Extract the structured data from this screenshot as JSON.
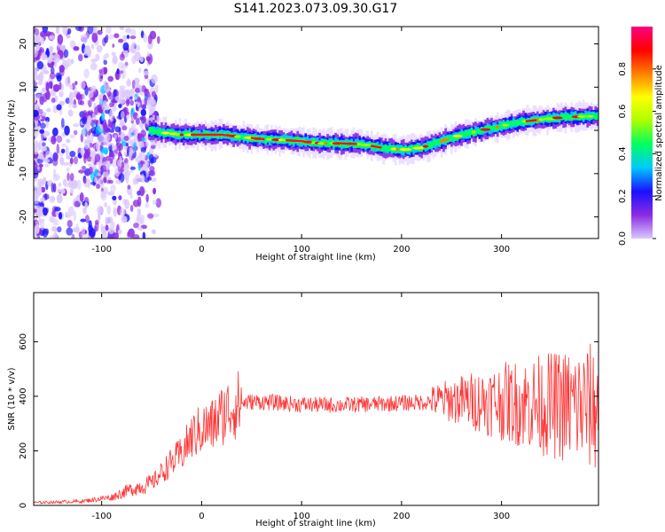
{
  "title": "S141.2023.073.09.30.G17",
  "chart_data": [
    {
      "type": "heatmap",
      "xlabel": "Height of straight line (km)",
      "ylabel": "Frequency (Hz)",
      "xlim": [
        -168,
        397
      ],
      "ylim": [
        -25,
        24
      ],
      "xticks": [
        -100,
        0,
        100,
        200,
        300
      ],
      "yticks": [
        -20,
        -10,
        0,
        10,
        20
      ],
      "colorbar": {
        "label": "Normalized spectral amplitude",
        "range": [
          0,
          1
        ],
        "ticks": [
          "0.0",
          "0.2",
          "0.4",
          "0.6",
          "0.8"
        ],
        "colormap": [
          "#d9c8ff",
          "#8a2be2",
          "#1a10ff",
          "#00c8ff",
          "#00ff60",
          "#aaff00",
          "#ffff00",
          "#ff7f00",
          "#ff0000",
          "#ff0080"
        ]
      },
      "ridge": {
        "x": [
          -50,
          -40,
          -20,
          0,
          20,
          40,
          60,
          80,
          100,
          120,
          140,
          160,
          180,
          200,
          220,
          240,
          260,
          280,
          300,
          320,
          340,
          360,
          380,
          397
        ],
        "y": [
          0,
          -0.5,
          -1,
          -1,
          -1,
          -1.5,
          -2,
          -2.2,
          -2.5,
          -3,
          -3,
          -3.2,
          -4,
          -4.5,
          -4,
          -2.5,
          -1,
          0,
          1,
          2,
          2.5,
          3,
          3.2,
          3.3
        ]
      }
    },
    {
      "type": "line",
      "xlabel": "Height of straight line (km)",
      "ylabel": "SNR (10 * v/v)",
      "xlim": [
        -168,
        397
      ],
      "ylim": [
        0,
        780
      ],
      "xticks": [
        -100,
        0,
        100,
        200,
        300
      ],
      "yticks": [
        0,
        200,
        400,
        600
      ],
      "color": "#ff3333",
      "envelope": {
        "x": [
          -168,
          -120,
          -90,
          -70,
          -50,
          -35,
          -20,
          -10,
          0,
          10,
          20,
          30,
          40,
          50,
          60,
          80,
          100,
          120,
          140,
          160,
          180,
          200,
          220,
          240,
          260,
          280,
          300,
          320,
          340,
          360,
          380,
          397
        ],
        "y": [
          10,
          15,
          30,
          60,
          80,
          140,
          190,
          250,
          280,
          290,
          330,
          360,
          375,
          380,
          380,
          375,
          370,
          368,
          368,
          370,
          372,
          375,
          378,
          385,
          385,
          382,
          380,
          375,
          370,
          365,
          360,
          360
        ]
      }
    }
  ]
}
